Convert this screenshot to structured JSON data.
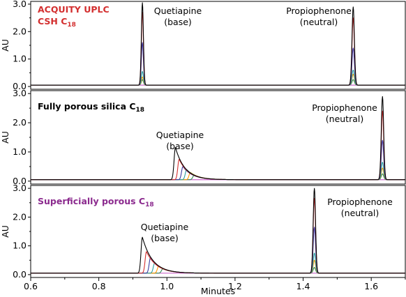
{
  "chart_data": [
    {
      "type": "line",
      "title": "ACQUITY UPLC",
      "title_line2": "CSH C",
      "title_sub": "18",
      "title_color": "#d32f2f",
      "ylabel": "AU",
      "xlim": [
        0.6,
        1.7
      ],
      "ylim": [
        -0.1,
        3.1
      ],
      "yticks": [
        "0.0",
        "1.0",
        "2.0",
        "3.0"
      ],
      "ytick_values": [
        0.0,
        1.0,
        2.0,
        3.0
      ],
      "baseline": 0.05,
      "peaks": [
        {
          "name": "Quetiapine",
          "label_line1": "Quetiapine",
          "label_line2": "(base)",
          "center": 0.928,
          "width": 0.003,
          "tail": 0.0,
          "heights": [
            3.0,
            2.65,
            1.55,
            0.5,
            0.3,
            0.2
          ]
        },
        {
          "name": "Propiophenone",
          "label_line1": "Propiophenone",
          "label_line2": "(neutral)",
          "center": 1.547,
          "width": 0.0035,
          "tail": 0.0,
          "heights": [
            2.85,
            2.45,
            1.35,
            0.55,
            0.4,
            0.2
          ]
        }
      ]
    },
    {
      "type": "line",
      "title": "Fully porous silica C",
      "title_sub": "18",
      "title_color": "#000000",
      "ylabel": "AU",
      "xlim": [
        0.6,
        1.7
      ],
      "ylim": [
        -0.1,
        3.1
      ],
      "yticks": [
        "0.0",
        "1.0",
        "2.0",
        "3.0"
      ],
      "ytick_values": [
        0.0,
        1.0,
        2.0,
        3.0
      ],
      "baseline": 0.05,
      "peaks": [
        {
          "name": "Quetiapine",
          "label_line1": "Quetiapine",
          "label_line2": "(base)",
          "center": 1.025,
          "width": 0.004,
          "tail": 0.028,
          "shift": 0.011,
          "heights": [
            1.1,
            0.7,
            0.45,
            0.35,
            0.25,
            0.15
          ]
        },
        {
          "name": "Propiophenone",
          "label_line1": "Propiophenone",
          "label_line2": "(neutral)",
          "center": 1.633,
          "width": 0.0035,
          "tail": 0.0,
          "heights": [
            2.85,
            2.35,
            1.35,
            0.6,
            0.4,
            0.2
          ]
        }
      ]
    },
    {
      "type": "line",
      "title": "Superficially porous C",
      "title_sub": "18",
      "title_color": "#8b2a8e",
      "ylabel": "AU",
      "xlim": [
        0.6,
        1.7
      ],
      "ylim": [
        -0.1,
        3.1
      ],
      "yticks": [
        "0.0",
        "1.0",
        "2.0",
        "3.0"
      ],
      "ytick_values": [
        0.0,
        1.0,
        2.0,
        3.0
      ],
      "baseline": 0.05,
      "peaks": [
        {
          "name": "Quetiapine",
          "label_line1": "Quetiapine",
          "label_line2": "(base)",
          "center": 0.928,
          "width": 0.004,
          "tail": 0.03,
          "shift": 0.012,
          "heights": [
            1.25,
            0.75,
            0.55,
            0.35,
            0.25,
            0.15
          ]
        },
        {
          "name": "Propiophenone",
          "label_line1": "Propiophenone",
          "label_line2": "(neutral)",
          "center": 1.433,
          "width": 0.0035,
          "tail": 0.0,
          "heights": [
            2.95,
            2.6,
            1.6,
            0.7,
            0.45,
            0.2
          ]
        }
      ]
    }
  ],
  "series_colors": [
    "#000000",
    "#d32f2f",
    "#3a3aa0",
    "#2aa0a0",
    "#ff9900",
    "#2e8b57"
  ],
  "baseline_color": "#cc66cc",
  "xaxis": {
    "label": "Minutes",
    "ticks": [
      "0.6",
      "0.8",
      "1.0",
      "1.2",
      "1.4",
      "1.6"
    ],
    "tick_values": [
      0.6,
      0.8,
      1.0,
      1.2,
      1.4,
      1.6
    ]
  }
}
